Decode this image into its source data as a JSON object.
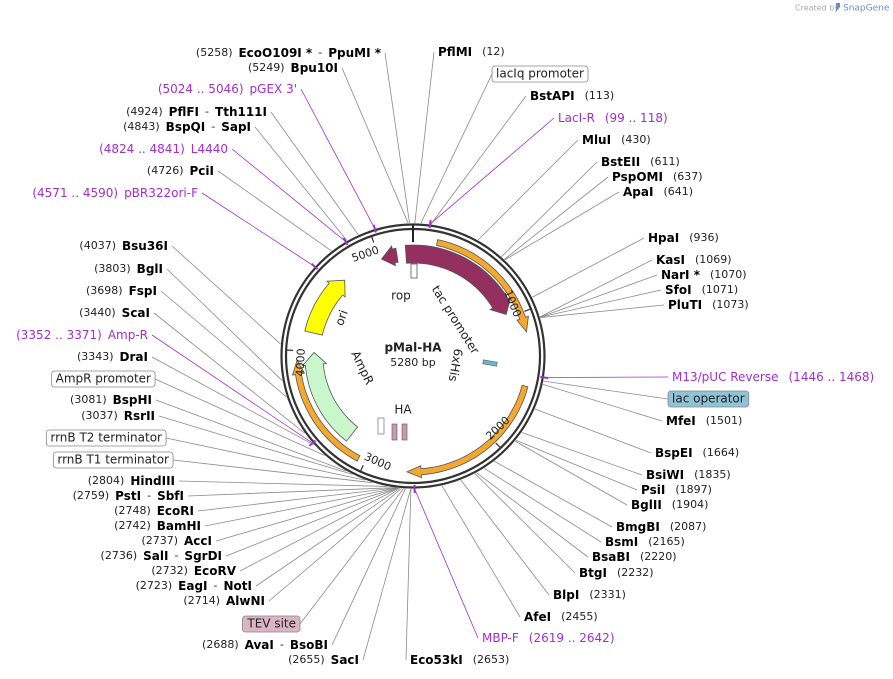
{
  "header": {
    "created_by": "Created by",
    "brand": "SnapGene"
  },
  "map": {
    "name": "pMal-HA",
    "size": "5280 bp",
    "ticks": [
      "1000",
      "2000",
      "3000",
      "4000",
      "5000"
    ],
    "features": [
      "lacI",
      "rop",
      "tac promoter",
      "6xHis",
      "ori",
      "AmpR",
      "HA"
    ]
  },
  "separator": "-",
  "left_labels": [
    {
      "kind": "site",
      "pos": "(5258)",
      "names": [
        "EcoO109I *",
        "PpuMI *"
      ]
    },
    {
      "kind": "site",
      "pos": "(5249)",
      "names": [
        "Bpu10I"
      ]
    },
    {
      "kind": "primer",
      "pos": "(5024 .. 5046)",
      "names": [
        "pGEX 3'"
      ]
    },
    {
      "kind": "site",
      "pos": "(4924)",
      "names": [
        "PflFI",
        "Tth111I"
      ]
    },
    {
      "kind": "site",
      "pos": "(4843)",
      "names": [
        "BspQI",
        "SapI"
      ]
    },
    {
      "kind": "primer",
      "pos": "(4824 .. 4841)",
      "names": [
        "L4440"
      ]
    },
    {
      "kind": "site",
      "pos": "(4726)",
      "names": [
        "PciI"
      ]
    },
    {
      "kind": "primer",
      "pos": "(4571 .. 4590)",
      "names": [
        "pBR322ori-F"
      ]
    },
    {
      "kind": "site",
      "pos": "(4037)",
      "names": [
        "Bsu36I"
      ]
    },
    {
      "kind": "site",
      "pos": "(3803)",
      "names": [
        "BglI"
      ]
    },
    {
      "kind": "site",
      "pos": "(3698)",
      "names": [
        "FspI"
      ]
    },
    {
      "kind": "site",
      "pos": "(3440)",
      "names": [
        "ScaI"
      ]
    },
    {
      "kind": "primer",
      "pos": "(3352 .. 3371)",
      "names": [
        "Amp-R"
      ]
    },
    {
      "kind": "site",
      "pos": "(3343)",
      "names": [
        "DraI"
      ]
    },
    {
      "kind": "feature",
      "names": [
        "AmpR promoter"
      ],
      "fill": "#ffffff"
    },
    {
      "kind": "site",
      "pos": "(3081)",
      "names": [
        "BspHI"
      ]
    },
    {
      "kind": "site",
      "pos": "(3037)",
      "names": [
        "RsrII"
      ]
    },
    {
      "kind": "feature",
      "names": [
        "rrnB T2 terminator"
      ],
      "fill": "#ffffff"
    },
    {
      "kind": "feature",
      "names": [
        "rrnB T1 terminator"
      ],
      "fill": "#ffffff"
    },
    {
      "kind": "site",
      "pos": "(2804)",
      "names": [
        "HindIII"
      ]
    },
    {
      "kind": "site",
      "pos": "(2759)",
      "names": [
        "PstI",
        "SbfI"
      ]
    },
    {
      "kind": "site",
      "pos": "(2748)",
      "names": [
        "EcoRI"
      ]
    },
    {
      "kind": "site",
      "pos": "(2742)",
      "names": [
        "BamHI"
      ]
    },
    {
      "kind": "site",
      "pos": "(2737)",
      "names": [
        "AccI"
      ]
    },
    {
      "kind": "site",
      "pos": "(2736)",
      "names": [
        "SalI",
        "SgrDI"
      ]
    },
    {
      "kind": "site",
      "pos": "(2732)",
      "names": [
        "EcoRV"
      ]
    },
    {
      "kind": "site",
      "pos": "(2723)",
      "names": [
        "EagI",
        "NotI"
      ]
    },
    {
      "kind": "site",
      "pos": "(2714)",
      "names": [
        "AlwNI"
      ]
    },
    {
      "kind": "feature",
      "names": [
        "TEV site"
      ],
      "fill": "#dcb4c4"
    },
    {
      "kind": "site",
      "pos": "(2688)",
      "names": [
        "AvaI",
        "BsoBI"
      ]
    },
    {
      "kind": "site",
      "pos": "(2655)",
      "names": [
        "SacI"
      ]
    }
  ],
  "right_labels": [
    {
      "kind": "site",
      "pos": "(12)",
      "names": [
        "PflMI"
      ]
    },
    {
      "kind": "feature",
      "names": [
        "lacIq promoter"
      ],
      "fill": "#ffffff"
    },
    {
      "kind": "site",
      "pos": "(113)",
      "names": [
        "BstAPI"
      ]
    },
    {
      "kind": "primer",
      "pos": "(99 .. 118)",
      "names": [
        "LacI-R"
      ]
    },
    {
      "kind": "site",
      "pos": "(430)",
      "names": [
        "MluI"
      ]
    },
    {
      "kind": "site",
      "pos": "(611)",
      "names": [
        "BstEII"
      ]
    },
    {
      "kind": "site",
      "pos": "(637)",
      "names": [
        "PspOMI"
      ]
    },
    {
      "kind": "site",
      "pos": "(641)",
      "names": [
        "ApaI"
      ]
    },
    {
      "kind": "site",
      "pos": "(936)",
      "names": [
        "HpaI"
      ]
    },
    {
      "kind": "site",
      "pos": "(1069)",
      "names": [
        "KasI"
      ]
    },
    {
      "kind": "site",
      "pos": "(1070)",
      "names": [
        "NarI *"
      ]
    },
    {
      "kind": "site",
      "pos": "(1071)",
      "names": [
        "SfoI"
      ]
    },
    {
      "kind": "site",
      "pos": "(1073)",
      "names": [
        "PluTI"
      ]
    },
    {
      "kind": "primer",
      "pos": "(1446 .. 1468)",
      "names": [
        "M13/pUC Reverse"
      ]
    },
    {
      "kind": "feature",
      "names": [
        "lac operator"
      ],
      "fill": "#8fc3d6"
    },
    {
      "kind": "site",
      "pos": "(1501)",
      "names": [
        "MfeI"
      ]
    },
    {
      "kind": "site",
      "pos": "(1664)",
      "names": [
        "BspEI"
      ]
    },
    {
      "kind": "site",
      "pos": "(1835)",
      "names": [
        "BsiWI"
      ]
    },
    {
      "kind": "site",
      "pos": "(1897)",
      "names": [
        "PsiI"
      ]
    },
    {
      "kind": "site",
      "pos": "(1904)",
      "names": [
        "BglII"
      ]
    },
    {
      "kind": "site",
      "pos": "(2087)",
      "names": [
        "BmgBI"
      ]
    },
    {
      "kind": "site",
      "pos": "(2165)",
      "names": [
        "BsmI"
      ]
    },
    {
      "kind": "site",
      "pos": "(2220)",
      "names": [
        "BsaBI"
      ]
    },
    {
      "kind": "site",
      "pos": "(2232)",
      "names": [
        "BtgI"
      ]
    },
    {
      "kind": "site",
      "pos": "(2331)",
      "names": [
        "BlpI"
      ]
    },
    {
      "kind": "site",
      "pos": "(2455)",
      "names": [
        "AfeI"
      ]
    },
    {
      "kind": "primer",
      "pos": "(2619 .. 2642)",
      "names": [
        "MBP-F"
      ]
    },
    {
      "kind": "site",
      "pos": "(2653)",
      "names": [
        "Eco53kI"
      ]
    }
  ]
}
